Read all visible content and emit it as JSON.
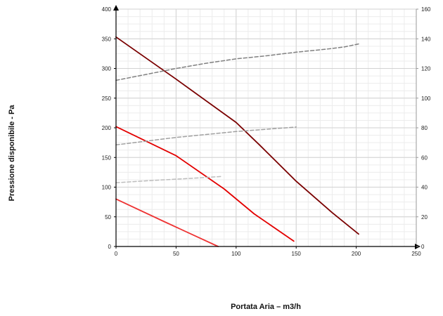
{
  "chart_data": {
    "type": "line",
    "title": "",
    "xlabel": "Portata Aria – m3/h",
    "ylabel": "Pressione disponibile - Pa",
    "y2label": "",
    "xlim": [
      0,
      250
    ],
    "ylim": [
      0,
      400
    ],
    "y2lim": [
      0,
      160
    ],
    "x_ticks": [
      0,
      50,
      100,
      150,
      200,
      250
    ],
    "y_ticks": [
      0,
      50,
      100,
      150,
      200,
      250,
      300,
      350,
      400
    ],
    "y2_ticks": [
      0,
      20,
      40,
      60,
      80,
      100,
      120,
      140,
      160
    ],
    "grid": true,
    "legend": "none",
    "series": [
      {
        "axis": "left",
        "style": "solid",
        "color": "#7a0000",
        "points": [
          [
            0,
            353
          ],
          [
            50,
            282
          ],
          [
            100,
            209
          ],
          [
            120,
            170
          ],
          [
            150,
            110
          ],
          [
            180,
            57
          ],
          [
            202,
            21
          ]
        ]
      },
      {
        "axis": "left",
        "style": "solid",
        "color": "#e30000",
        "points": [
          [
            0,
            202
          ],
          [
            50,
            153
          ],
          [
            90,
            97
          ],
          [
            115,
            55
          ],
          [
            148,
            9
          ]
        ]
      },
      {
        "axis": "left",
        "style": "solid",
        "color": "#ee3333",
        "points": [
          [
            0,
            80
          ],
          [
            40,
            42
          ],
          [
            85,
            0
          ]
        ]
      },
      {
        "axis": "right",
        "style": "dashed",
        "color": "#808080",
        "points": [
          [
            0,
            112
          ],
          [
            25,
            116
          ],
          [
            50,
            120
          ],
          [
            75,
            123.5
          ],
          [
            100,
            126.5
          ],
          [
            125,
            128.5
          ],
          [
            150,
            131
          ],
          [
            175,
            133
          ],
          [
            190,
            134.5
          ],
          [
            202,
            136.5
          ]
        ]
      },
      {
        "axis": "right",
        "style": "dashed",
        "color": "#a0a0a0",
        "points": [
          [
            0,
            68.5
          ],
          [
            25,
            71
          ],
          [
            50,
            73.5
          ],
          [
            75,
            75.5
          ],
          [
            100,
            77.5
          ],
          [
            125,
            79
          ],
          [
            150,
            80.5
          ]
        ]
      },
      {
        "axis": "right",
        "style": "dashed",
        "color": "#bdbdbd",
        "points": [
          [
            0,
            43
          ],
          [
            30,
            44.5
          ],
          [
            60,
            45.8
          ],
          [
            88,
            47.2
          ]
        ]
      }
    ]
  }
}
